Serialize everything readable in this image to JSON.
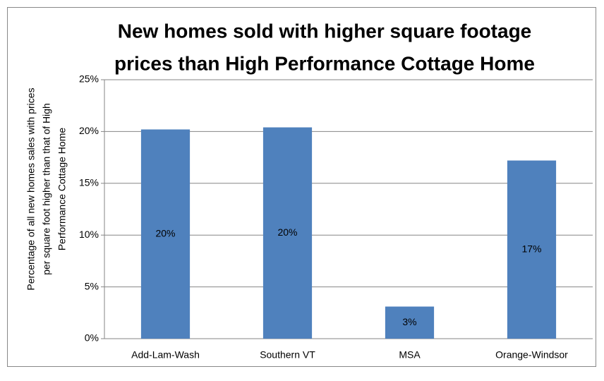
{
  "chart_data": {
    "type": "bar",
    "title": [
      "New homes sold with higher square footage",
      "prices than High Performance Cottage Home"
    ],
    "y_label": [
      "Percentage of all new homes sales with prices",
      "per square foot higher than that of High",
      "Performance Cottage Home"
    ],
    "categories": [
      "Add-Lam-Wash",
      "Southern VT",
      "MSA",
      "Orange-Windsor"
    ],
    "values": [
      20.2,
      20.4,
      3.1,
      17.2
    ],
    "value_labels": [
      "20%",
      "20%",
      "3%",
      "17%"
    ],
    "color": "#4f81bd",
    "ylim": [
      0,
      25
    ],
    "yticks": [
      {
        "value": 0,
        "label": "0%"
      },
      {
        "value": 5,
        "label": "5%"
      },
      {
        "value": 10,
        "label": "10%"
      },
      {
        "value": 15,
        "label": "15%"
      },
      {
        "value": 20,
        "label": "20%"
      },
      {
        "value": 25,
        "label": "25%"
      }
    ],
    "grid": true
  }
}
